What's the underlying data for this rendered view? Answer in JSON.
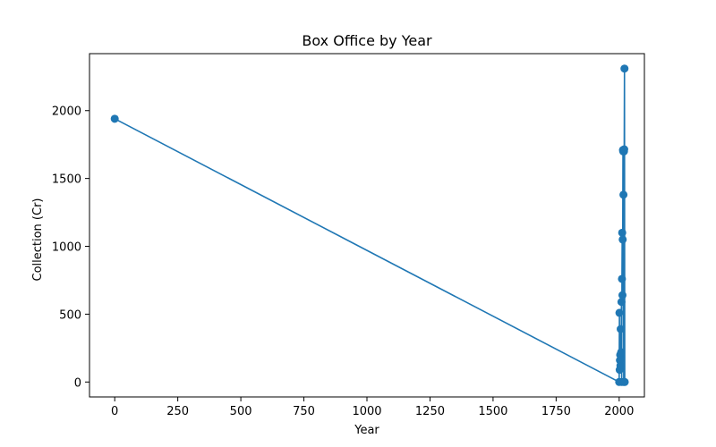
{
  "chart_data": {
    "type": "line",
    "title": "Box Office by Year",
    "xlabel": "Year",
    "ylabel": "Collection (Cr)",
    "xlim": [
      -100,
      2100
    ],
    "ylim": [
      -110,
      2420
    ],
    "xticks": [
      0,
      250,
      500,
      750,
      1000,
      1250,
      1500,
      1750,
      2000
    ],
    "yticks": [
      0,
      500,
      1000,
      1500,
      2000
    ],
    "grid": false,
    "color": "#1f77b4",
    "series": [
      {
        "x": [
          0,
          2000,
          2001,
          2002,
          2003,
          2004,
          2005,
          2006,
          2007,
          2008,
          2009,
          2010,
          2011,
          2012,
          2013,
          2014,
          2015,
          2016,
          2017,
          2018,
          2019,
          2020,
          2021,
          2022
        ],
        "y": [
          1940,
          0,
          510,
          90,
          160,
          200,
          120,
          390,
          170,
          220,
          590,
          0,
          760,
          1100,
          640,
          1050,
          1710,
          1700,
          1380,
          0,
          1700,
          1715,
          2310,
          0
        ]
      }
    ]
  }
}
